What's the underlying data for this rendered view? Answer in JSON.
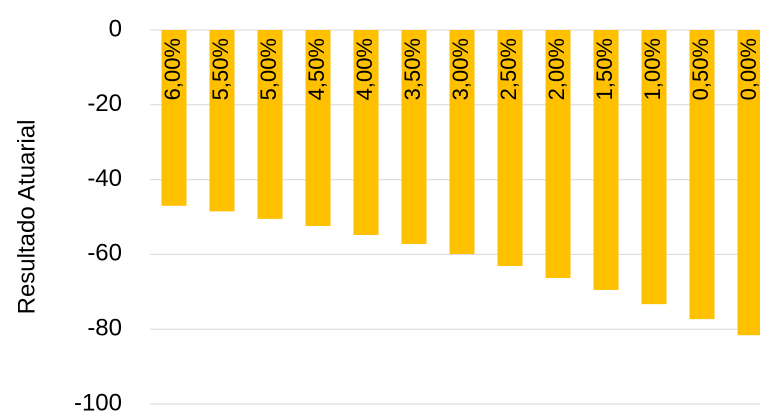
{
  "chart_data": {
    "type": "bar",
    "y_label": "Resultado Atuarial",
    "categories": [
      "6,00%",
      "5,50%",
      "5,00%",
      "4,50%",
      "4,00%",
      "3,50%",
      "3,00%",
      "2,50%",
      "2,00%",
      "1,50%",
      "1,00%",
      "0,50%",
      "0,00%"
    ],
    "values": [
      -47,
      -48.5,
      -50.5,
      -52.4,
      -54.8,
      -57.2,
      -59.9,
      -63.1,
      -66.3,
      -69.5,
      -73.3,
      -77.3,
      -81.6
    ],
    "color": "#ffc000",
    "ylim": [
      -100,
      0
    ],
    "yticks": [
      -100,
      -80,
      -60,
      -40,
      -20,
      0
    ],
    "grid": true
  }
}
